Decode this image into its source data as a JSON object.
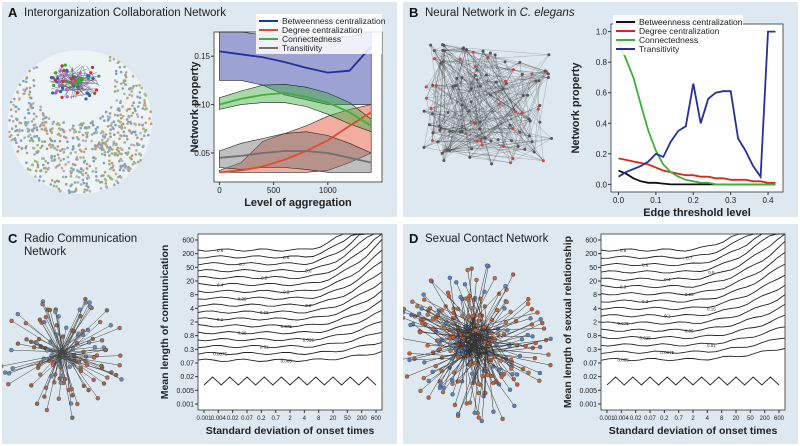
{
  "panels": [
    {
      "letter": "A",
      "title": "Interorganization Collaboration Network"
    },
    {
      "letter": "B",
      "title_pre": "Neural Network in ",
      "title_italic": "C. elegans"
    },
    {
      "letter": "C",
      "title_l1": "Radio Communication",
      "title_l2": "Network"
    },
    {
      "letter": "D",
      "title": "Sexual Contact Network"
    }
  ],
  "chart_data": [
    {
      "id": "A",
      "type": "line",
      "xlabel": "Level of aggregation",
      "ylabel": "Network property",
      "xlim": [
        -50,
        1500
      ],
      "ylim": [
        0.02,
        0.175
      ],
      "xticks": [
        0,
        500,
        1000
      ],
      "yticks": [
        0.05,
        0.1,
        0.15
      ],
      "ytick_labels": [
        "0.05",
        "0.10",
        "0.15"
      ],
      "legend": [
        "Betweenness centralization",
        "Degree centralization",
        "Connectedness",
        "Transitivity"
      ],
      "x": [
        0,
        200,
        400,
        600,
        800,
        1000,
        1200,
        1400
      ],
      "series": [
        {
          "name": "Betweenness centralization",
          "color": "#24309a",
          "values": [
            0.155,
            0.152,
            0.149,
            0.144,
            0.138,
            0.133,
            0.135,
            0.16
          ],
          "lo": [
            0.125,
            0.125,
            0.12,
            0.11,
            0.105,
            0.1,
            0.1,
            0.1
          ],
          "hi": [
            0.175,
            0.175,
            0.172,
            0.172,
            0.17,
            0.17,
            0.17,
            0.175
          ]
        },
        {
          "name": "Degree centralization",
          "color": "#e04a2c",
          "values": [
            0.03,
            0.032,
            0.036,
            0.043,
            0.052,
            0.063,
            0.078,
            0.092
          ],
          "lo": [
            0.03,
            0.03,
            0.03,
            0.03,
            0.03,
            0.032,
            0.04,
            0.05
          ],
          "hi": [
            0.032,
            0.04,
            0.062,
            0.07,
            0.078,
            0.088,
            0.095,
            0.1
          ]
        },
        {
          "name": "Connectedness",
          "color": "#3fae3f",
          "values": [
            0.1,
            0.106,
            0.11,
            0.112,
            0.108,
            0.102,
            0.092,
            0.078
          ],
          "lo": [
            0.095,
            0.1,
            0.102,
            0.102,
            0.098,
            0.09,
            0.08,
            0.072
          ],
          "hi": [
            0.107,
            0.114,
            0.12,
            0.121,
            0.118,
            0.112,
            0.102,
            0.085
          ]
        },
        {
          "name": "Transitivity",
          "color": "#707070",
          "values": [
            0.045,
            0.047,
            0.05,
            0.052,
            0.052,
            0.05,
            0.045,
            0.04
          ],
          "lo": [
            0.035,
            0.033,
            0.035,
            0.035,
            0.033,
            0.03,
            0.03,
            0.03
          ],
          "hi": [
            0.052,
            0.06,
            0.065,
            0.07,
            0.072,
            0.068,
            0.06,
            0.05
          ]
        }
      ]
    },
    {
      "id": "B",
      "type": "line",
      "xlabel": "Edge threshold level",
      "ylabel": "Network property",
      "xlim": [
        -0.02,
        0.44
      ],
      "ylim": [
        -0.05,
        1.05
      ],
      "xticks": [
        0,
        0.1,
        0.2,
        0.3,
        0.4
      ],
      "xtick_labels": [
        "0.0",
        "0.1",
        "0.2",
        "0.3",
        "0.4"
      ],
      "yticks": [
        0,
        0.2,
        0.4,
        0.6,
        0.8,
        1.0
      ],
      "ytick_labels": [
        "0.0",
        "0.2",
        "0.4",
        "0.6",
        "0.8",
        "1.0"
      ],
      "legend": [
        "Betweenness centralization",
        "Degree centralization",
        "Connectedness",
        "Transitivity"
      ],
      "x": [
        0,
        0.02,
        0.04,
        0.06,
        0.08,
        0.1,
        0.12,
        0.14,
        0.16,
        0.18,
        0.2,
        0.22,
        0.24,
        0.26,
        0.28,
        0.3,
        0.32,
        0.34,
        0.36,
        0.38,
        0.4,
        0.42
      ],
      "series": [
        {
          "name": "Betweenness centralization",
          "color": "#111111",
          "values": [
            0.09,
            0.07,
            0.04,
            0.02,
            0.01,
            0.01,
            0.005,
            0,
            0,
            0,
            0,
            0,
            0,
            0,
            0,
            0,
            0,
            0,
            0,
            0,
            0,
            0
          ]
        },
        {
          "name": "Degree centralization",
          "color": "#d8281c",
          "values": [
            0.17,
            0.16,
            0.15,
            0.14,
            0.13,
            0.11,
            0.09,
            0.08,
            0.07,
            0.06,
            0.06,
            0.05,
            0.05,
            0.04,
            0.04,
            0.03,
            0.03,
            0.03,
            0.02,
            0.02,
            0.01,
            0.01
          ]
        },
        {
          "name": "Connectedness",
          "color": "#3fae3f",
          "values": [
            0.93,
            0.82,
            0.7,
            0.52,
            0.35,
            0.22,
            0.13,
            0.08,
            0.05,
            0.03,
            0.02,
            0.01,
            0.01,
            0,
            0,
            0,
            0,
            0,
            0,
            0,
            0,
            0
          ]
        },
        {
          "name": "Transitivity",
          "color": "#24309a",
          "values": [
            0.05,
            0.08,
            0.1,
            0.12,
            0.15,
            0.2,
            0.18,
            0.28,
            0.35,
            0.38,
            0.66,
            0.4,
            0.56,
            0.6,
            0.61,
            0.61,
            0.3,
            0.22,
            0.12,
            0.05,
            1.0,
            1.0
          ]
        }
      ]
    },
    {
      "id": "C",
      "type": "contour",
      "xlabel": "Standard deviation of onset times",
      "ylabel": "Mean length of communication",
      "xtick_labels": [
        "0.001",
        "0.004",
        "0.02",
        "0.07",
        "0.2",
        "0.7",
        "2",
        "4",
        "8",
        "20",
        "50",
        "200",
        "600"
      ],
      "ytick_labels": [
        "600",
        "200",
        "50",
        "20",
        "8",
        "4",
        "2",
        "0.8",
        "0.3",
        "0.07",
        "0.02",
        "0.005",
        "0.001"
      ],
      "contour_labels": [
        "0.9",
        "0.8",
        "0.7",
        "0.6",
        "0.5",
        "0.4",
        "0.3",
        "0.25",
        "0.2",
        "0.15",
        "0.1",
        "0.075",
        "0.05",
        "0.025",
        "0.01",
        "0.0075",
        "0.005"
      ]
    },
    {
      "id": "D",
      "type": "contour",
      "xlabel": "Standard deviation of onset times",
      "ylabel": "Mean length of sexual relationship",
      "xtick_labels": [
        "0.001",
        "0.004",
        "0.02",
        "0.07",
        "0.2",
        "0.7",
        "2",
        "4",
        "8",
        "20",
        "50",
        "200",
        "600"
      ],
      "ytick_labels": [
        "600",
        "200",
        "50",
        "20",
        "8",
        "4",
        "2",
        "0.8",
        "0.3",
        "0.07",
        "0.02",
        "0.005",
        "0.001"
      ],
      "contour_labels": [
        "0.8",
        "0.7",
        "0.6",
        "0.5",
        "0.4",
        "0.3",
        "0.25",
        "0.2",
        "0.15",
        "0.1",
        "0.075",
        "0.05",
        "0.025",
        "0.01",
        "0.0075",
        "0.005"
      ]
    }
  ]
}
